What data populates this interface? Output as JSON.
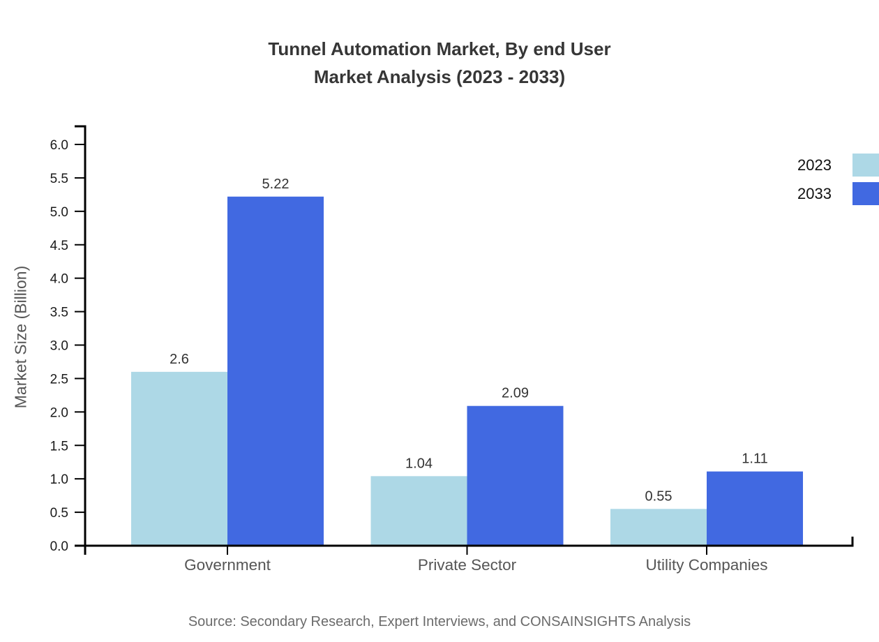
{
  "title": {
    "line1": "Tunnel Automation Market, By end User",
    "line2": "Market Analysis (2023 - 2033)"
  },
  "chart_data": {
    "type": "bar",
    "title": "Tunnel Automation Market, By end User Market Analysis (2023 - 2033)",
    "categories": [
      "Government",
      "Private Sector",
      "Utility Companies"
    ],
    "series": [
      {
        "name": "2023",
        "color": "#ADD8E6",
        "values": [
          2.6,
          1.04,
          0.55
        ]
      },
      {
        "name": "2033",
        "color": "#4169E1",
        "values": [
          5.22,
          2.09,
          1.11
        ]
      }
    ],
    "xlabel": "",
    "ylabel": "Market Size (Billion)",
    "ylim": [
      0,
      6.0
    ],
    "ytick_step": 0.5,
    "ytick_format_decimals": 1,
    "grid": false,
    "bar_value_labels": true,
    "legend_position": "top-right"
  },
  "legend": {
    "items": [
      {
        "label": "2023",
        "color": "#ADD8E6"
      },
      {
        "label": "2033",
        "color": "#4169E1"
      }
    ]
  },
  "source_note": "Source: Secondary Research, Expert Interviews, and CONSAINSIGHTS Analysis"
}
